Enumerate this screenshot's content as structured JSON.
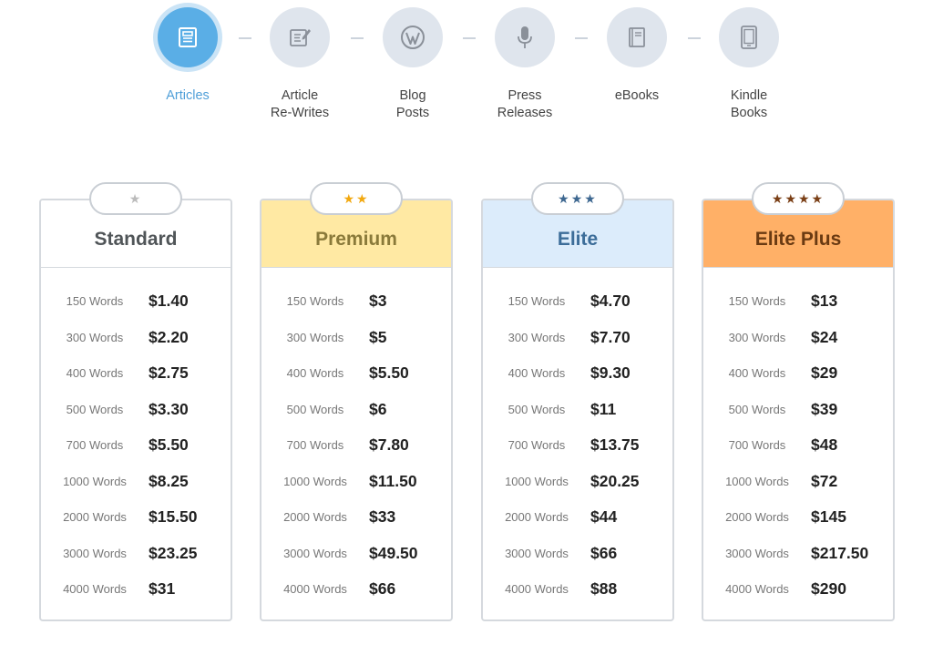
{
  "nav": {
    "items": [
      {
        "label": "Articles",
        "icon": "article-icon",
        "active": true
      },
      {
        "label": "Article\nRe-Writes",
        "icon": "edit-icon",
        "active": false
      },
      {
        "label": "Blog\nPosts",
        "icon": "wordpress-icon",
        "active": false
      },
      {
        "label": "Press\nReleases",
        "icon": "microphone-icon",
        "active": false
      },
      {
        "label": "eBooks",
        "icon": "book-icon",
        "active": false
      },
      {
        "label": "Kindle\nBooks",
        "icon": "tablet-icon",
        "active": false
      }
    ]
  },
  "plans": [
    {
      "name": "Standard",
      "stars": "★",
      "stars_count": 1,
      "header_bg": "#ffffff",
      "title_color": "#505558",
      "star_color": "#bbbbbb",
      "rows": [
        {
          "words": "150 Words",
          "price": "$1.40"
        },
        {
          "words": "300 Words",
          "price": "$2.20"
        },
        {
          "words": "400 Words",
          "price": "$2.75"
        },
        {
          "words": "500 Words",
          "price": "$3.30"
        },
        {
          "words": "700 Words",
          "price": "$5.50"
        },
        {
          "words": "1000 Words",
          "price": "$8.25"
        },
        {
          "words": "2000 Words",
          "price": "$15.50"
        },
        {
          "words": "3000 Words",
          "price": "$23.25"
        },
        {
          "words": "4000 Words",
          "price": "$31"
        }
      ]
    },
    {
      "name": "Premium",
      "stars": "★★",
      "stars_count": 2,
      "header_bg": "#ffe9a3",
      "title_color": "#8a7a3a",
      "star_color": "#f2a80f",
      "rows": [
        {
          "words": "150 Words",
          "price": "$3"
        },
        {
          "words": "300 Words",
          "price": "$5"
        },
        {
          "words": "400 Words",
          "price": "$5.50"
        },
        {
          "words": "500 Words",
          "price": "$6"
        },
        {
          "words": "700 Words",
          "price": "$7.80"
        },
        {
          "words": "1000 Words",
          "price": "$11.50"
        },
        {
          "words": "2000 Words",
          "price": "$33"
        },
        {
          "words": "3000 Words",
          "price": "$49.50"
        },
        {
          "words": "4000 Words",
          "price": "$66"
        }
      ]
    },
    {
      "name": "Elite",
      "stars": "★★★",
      "stars_count": 3,
      "header_bg": "#dcecfb",
      "title_color": "#3c6d99",
      "star_color": "#3d6790",
      "rows": [
        {
          "words": "150 Words",
          "price": "$4.70"
        },
        {
          "words": "300 Words",
          "price": "$7.70"
        },
        {
          "words": "400 Words",
          "price": "$9.30"
        },
        {
          "words": "500 Words",
          "price": "$11"
        },
        {
          "words": "700 Words",
          "price": "$13.75"
        },
        {
          "words": "1000 Words",
          "price": "$20.25"
        },
        {
          "words": "2000 Words",
          "price": "$44"
        },
        {
          "words": "3000 Words",
          "price": "$66"
        },
        {
          "words": "4000 Words",
          "price": "$88"
        }
      ]
    },
    {
      "name": "Elite Plus",
      "stars": "★★★★",
      "stars_count": 4,
      "header_bg": "#ffb067",
      "title_color": "#6a3a12",
      "star_color": "#7a3f16",
      "rows": [
        {
          "words": "150 Words",
          "price": "$13"
        },
        {
          "words": "300 Words",
          "price": "$24"
        },
        {
          "words": "400 Words",
          "price": "$29"
        },
        {
          "words": "500 Words",
          "price": "$39"
        },
        {
          "words": "700 Words",
          "price": "$48"
        },
        {
          "words": "1000 Words",
          "price": "$72"
        },
        {
          "words": "2000 Words",
          "price": "$145"
        },
        {
          "words": "3000 Words",
          "price": "$217.50"
        },
        {
          "words": "4000 Words",
          "price": "$290"
        }
      ]
    }
  ]
}
